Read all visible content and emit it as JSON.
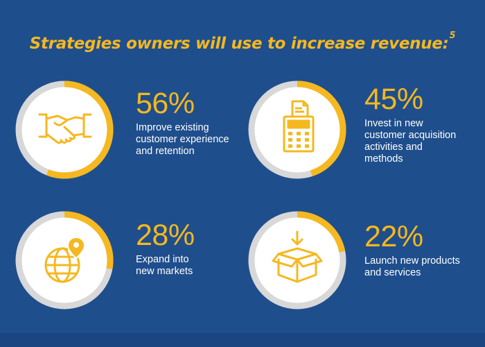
{
  "title": "Strategies owners will use to increase revenue:",
  "title_footnote": "5",
  "colors": {
    "background": "#1f4e8c",
    "accent": "#f5b820",
    "ring_track": "#d8d8d8",
    "circle_fill": "#ffffff",
    "text": "#ffffff"
  },
  "chart_data": {
    "type": "pie",
    "title": "Strategies owners will use to increase revenue:",
    "unit": "%",
    "items": [
      {
        "value": 56,
        "value_label": "56%",
        "label": "Improve existing customer experience and retention",
        "icon": "handshake-icon"
      },
      {
        "value": 45,
        "value_label": "45%",
        "label": "Invest in new customer acquisition activities and methods",
        "icon": "cash-register-icon"
      },
      {
        "value": 28,
        "value_label": "28%",
        "label": "Expand into new markets",
        "icon": "globe-pin-icon"
      },
      {
        "value": 22,
        "value_label": "22%",
        "label": "Launch new products and services",
        "icon": "open-box-icon"
      }
    ]
  },
  "stats": [
    {
      "pct": "56%",
      "desc": "Improve existing\ncustomer experience\nand retention"
    },
    {
      "pct": "45%",
      "desc": "Invest in new\ncustomer acquisition\nactivities and\nmethods"
    },
    {
      "pct": "28%",
      "desc": "Expand into\n new markets"
    },
    {
      "pct": "22%",
      "desc": "Launch new products\nand services"
    }
  ]
}
